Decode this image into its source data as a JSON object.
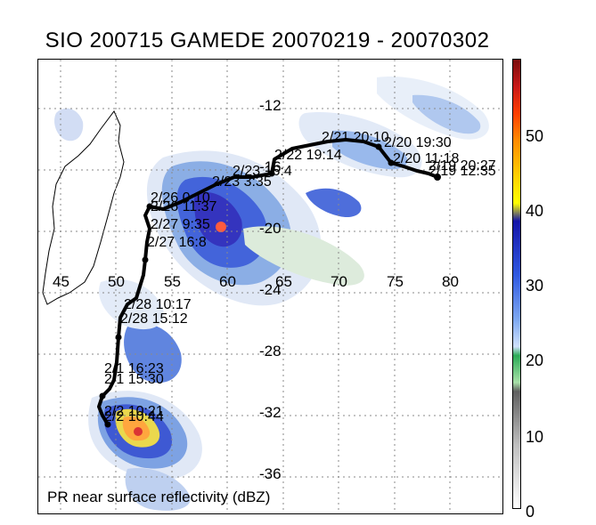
{
  "title": "SIO 200715 GAMEDE 20070219 - 20070302",
  "footer": "PR near surface reflectivity (dBZ)",
  "lon_labels": [
    "45",
    "50",
    "55",
    "60",
    "65",
    "70",
    "75",
    "80"
  ],
  "lat_labels": [
    "-12",
    "-16",
    "-20",
    "-24",
    "-28",
    "-32",
    "-36"
  ],
  "colorbar": {
    "labels": [
      "50",
      "40",
      "30",
      "20",
      "10",
      "0"
    ],
    "unit": "dBZ"
  },
  "track_labels": [
    "2/21 20:10",
    "2/20 19:30",
    "2/20 11:18",
    "2/19 20:27",
    "2/19 12:35",
    "2/22 19:14",
    "2/23 16:4",
    "2/23 3:35",
    "2/26 0:10",
    "2/26 11:37",
    "2/27 9:35",
    "2/27 16:8",
    "2/28 10:17",
    "2/28 15:12",
    "2/1 16:23",
    "2/1 15:30",
    "2/2 10:21",
    "2/2 10:44"
  ],
  "colors": {
    "track": "#000000",
    "coast": "#000000",
    "grid": "#8a8a8a"
  }
}
